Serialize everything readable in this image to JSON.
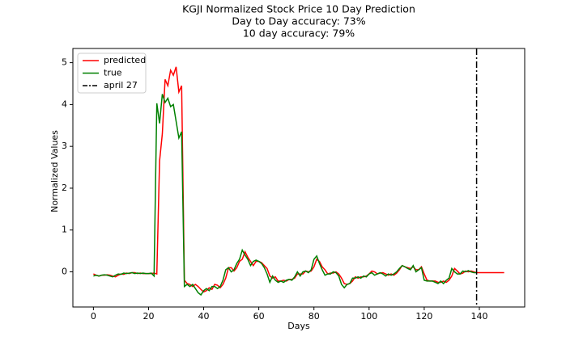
{
  "chart_data": {
    "type": "line",
    "title": "KGJI Normalized Stock Price 10 Day Prediction",
    "subtitle": [
      "Day to Day accuracy: 73%",
      "10 day accuracy: 79%"
    ],
    "x_label": "Days",
    "y_label": "Normalized Values",
    "x": [
      0,
      1,
      2,
      3,
      4,
      5,
      6,
      7,
      8,
      9,
      10,
      11,
      12,
      13,
      14,
      15,
      16,
      17,
      18,
      19,
      20,
      21,
      22,
      23,
      24,
      25,
      26,
      27,
      28,
      29,
      30,
      31,
      32,
      33,
      34,
      35,
      36,
      37,
      38,
      39,
      40,
      41,
      42,
      43,
      44,
      45,
      46,
      47,
      48,
      49,
      50,
      51,
      52,
      53,
      54,
      55,
      56,
      57,
      58,
      59,
      60,
      61,
      62,
      63,
      64,
      65,
      66,
      67,
      68,
      69,
      70,
      71,
      72,
      73,
      74,
      75,
      76,
      77,
      78,
      79,
      80,
      81,
      82,
      83,
      84,
      85,
      86,
      87,
      88,
      89,
      90,
      91,
      92,
      93,
      94,
      95,
      96,
      97,
      98,
      99,
      100,
      101,
      102,
      103,
      104,
      105,
      106,
      107,
      108,
      109,
      110,
      111,
      112,
      113,
      114,
      115,
      116,
      117,
      118,
      119,
      120,
      121,
      122,
      123,
      124,
      125,
      126,
      127,
      128,
      129,
      130,
      131,
      132,
      133,
      134,
      135,
      136,
      137,
      138,
      139,
      140,
      141,
      142,
      143,
      144,
      145,
      146,
      147,
      148,
      149
    ],
    "series": [
      {
        "name": "predicted",
        "color": "#ff0000",
        "values": [
          -0.05,
          -0.08,
          -0.1,
          -0.08,
          -0.08,
          -0.07,
          -0.08,
          -0.1,
          -0.12,
          -0.08,
          -0.05,
          -0.06,
          -0.03,
          -0.04,
          -0.02,
          -0.02,
          -0.04,
          -0.03,
          -0.04,
          -0.04,
          -0.04,
          -0.04,
          -0.03,
          -0.05,
          2.65,
          3.3,
          4.6,
          4.45,
          4.82,
          4.7,
          4.9,
          4.3,
          4.45,
          -0.2,
          -0.28,
          -0.3,
          -0.35,
          -0.3,
          -0.35,
          -0.42,
          -0.48,
          -0.45,
          -0.38,
          -0.42,
          -0.3,
          -0.32,
          -0.38,
          -0.3,
          -0.15,
          0.1,
          0.1,
          0.02,
          0.1,
          0.25,
          0.3,
          0.48,
          0.35,
          0.25,
          0.15,
          0.25,
          0.25,
          0.22,
          0.15,
          0.08,
          -0.1,
          -0.15,
          -0.12,
          -0.22,
          -0.22,
          -0.2,
          -0.22,
          -0.18,
          -0.18,
          -0.15,
          -0.05,
          -0.05,
          -0.05,
          0.02,
          0.0,
          0.02,
          0.12,
          0.3,
          0.25,
          0.12,
          0.05,
          -0.05,
          -0.03,
          -0.03,
          0.0,
          -0.05,
          -0.15,
          -0.28,
          -0.3,
          -0.28,
          -0.22,
          -0.12,
          -0.15,
          -0.12,
          -0.12,
          -0.1,
          -0.05,
          0.02,
          0.0,
          -0.05,
          -0.03,
          -0.02,
          -0.05,
          -0.08,
          -0.05,
          -0.08,
          -0.03,
          0.05,
          0.15,
          0.12,
          0.1,
          0.08,
          0.12,
          0.05,
          0.05,
          0.12,
          -0.05,
          -0.2,
          -0.22,
          -0.22,
          -0.22,
          -0.25,
          -0.25,
          -0.22,
          -0.25,
          -0.2,
          -0.1,
          0.08,
          0.02,
          -0.05,
          -0.03,
          0.02,
          0.0,
          0.02,
          0.0,
          -0.02,
          -0.02,
          -0.02,
          -0.02,
          -0.02,
          -0.02,
          -0.02,
          -0.02,
          -0.02,
          -0.02,
          -0.02
        ]
      },
      {
        "name": "true",
        "color": "#008000",
        "values": [
          -0.1,
          -0.08,
          -0.1,
          -0.08,
          -0.07,
          -0.08,
          -0.1,
          -0.12,
          -0.08,
          -0.05,
          -0.06,
          -0.03,
          -0.04,
          -0.03,
          -0.02,
          -0.04,
          -0.03,
          -0.04,
          -0.03,
          -0.04,
          -0.04,
          -0.03,
          -0.1,
          4.03,
          3.55,
          4.25,
          4.05,
          4.15,
          3.95,
          4.0,
          3.6,
          3.2,
          3.35,
          -0.35,
          -0.3,
          -0.35,
          -0.3,
          -0.4,
          -0.5,
          -0.55,
          -0.45,
          -0.4,
          -0.45,
          -0.35,
          -0.35,
          -0.4,
          -0.35,
          -0.2,
          0.05,
          0.1,
          0.0,
          0.05,
          0.2,
          0.3,
          0.52,
          0.4,
          0.3,
          0.15,
          0.25,
          0.28,
          0.25,
          0.2,
          0.1,
          -0.05,
          -0.25,
          -0.1,
          -0.2,
          -0.25,
          -0.22,
          -0.25,
          -0.2,
          -0.18,
          -0.2,
          -0.12,
          0.0,
          -0.1,
          0.0,
          0.02,
          -0.02,
          0.05,
          0.3,
          0.38,
          0.2,
          0.05,
          -0.08,
          -0.05,
          -0.05,
          0.0,
          -0.02,
          -0.1,
          -0.3,
          -0.38,
          -0.3,
          -0.28,
          -0.15,
          -0.15,
          -0.12,
          -0.15,
          -0.1,
          -0.12,
          -0.05,
          -0.02,
          -0.08,
          -0.05,
          -0.02,
          -0.05,
          -0.1,
          -0.05,
          -0.08,
          -0.05,
          0.0,
          0.08,
          0.15,
          0.12,
          0.08,
          0.05,
          0.15,
          0.0,
          0.05,
          0.1,
          -0.2,
          -0.22,
          -0.22,
          -0.22,
          -0.25,
          -0.28,
          -0.22,
          -0.28,
          -0.2,
          -0.15,
          0.08,
          0.0,
          -0.05,
          -0.05,
          0.02,
          0.0,
          0.03,
          0.0,
          -0.02,
          -0.02,
          null,
          null,
          null,
          null,
          null,
          null,
          null,
          null,
          null,
          null
        ]
      }
    ],
    "vline": {
      "x": 139,
      "label": "april 27",
      "color": "#000000"
    },
    "xlim": [
      -7.45,
      156.45
    ],
    "ylim": [
      -0.84,
      5.34
    ],
    "xticks": [
      0,
      20,
      40,
      60,
      80,
      100,
      120,
      140
    ],
    "yticks": [
      0,
      1,
      2,
      3,
      4,
      5
    ],
    "legend": "upper left"
  }
}
